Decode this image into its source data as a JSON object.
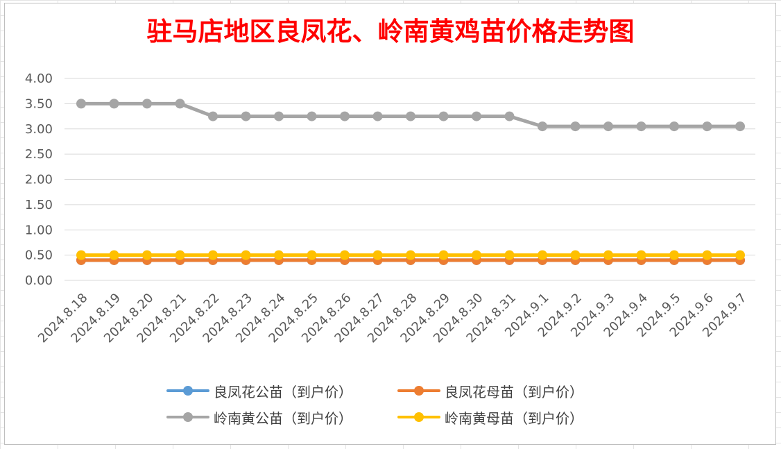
{
  "chart_data": {
    "type": "line",
    "title": "驻马店地区良凤花、岭南黄鸡苗价格走势图",
    "categories": [
      "2024.8.18",
      "2024.8.19",
      "2024.8.20",
      "2024.8.21",
      "2024.8.22",
      "2024.8.23",
      "2024.8.24",
      "2024.8.25",
      "2024.8.26",
      "2024.8.27",
      "2024.8.28",
      "2024.8.29",
      "2024.8.30",
      "2024.8.31",
      "2024.9.1",
      "2024.9.2",
      "2024.9.3",
      "2024.9.4",
      "2024.9.5",
      "2024.9.6",
      "2024.9.7"
    ],
    "ylim": [
      0,
      4
    ],
    "yticks": [
      "0.00",
      "0.50",
      "1.00",
      "1.50",
      "2.00",
      "2.50",
      "3.00",
      "3.50",
      "4.00"
    ],
    "grid": true,
    "legend_position": "bottom",
    "series": [
      {
        "name": "良凤花公苗（到户价）",
        "color": "#5b9bd5",
        "values": [
          0.4,
          0.4,
          0.4,
          0.4,
          0.4,
          0.4,
          0.4,
          0.4,
          0.4,
          0.4,
          0.4,
          0.4,
          0.4,
          0.4,
          0.4,
          0.4,
          0.4,
          0.4,
          0.4,
          0.4,
          0.4
        ]
      },
      {
        "name": "良凤花母苗（到户价）",
        "color": "#ed7d31",
        "values": [
          0.4,
          0.4,
          0.4,
          0.4,
          0.4,
          0.4,
          0.4,
          0.4,
          0.4,
          0.4,
          0.4,
          0.4,
          0.4,
          0.4,
          0.4,
          0.4,
          0.4,
          0.4,
          0.4,
          0.4,
          0.4
        ]
      },
      {
        "name": "岭南黄公苗（到户价）",
        "color": "#a5a5a5",
        "values": [
          3.5,
          3.5,
          3.5,
          3.5,
          3.25,
          3.25,
          3.25,
          3.25,
          3.25,
          3.25,
          3.25,
          3.25,
          3.25,
          3.25,
          3.05,
          3.05,
          3.05,
          3.05,
          3.05,
          3.05,
          3.05
        ]
      },
      {
        "name": "岭南黄母苗（到户价）",
        "color": "#ffc000",
        "values": [
          0.5,
          0.5,
          0.5,
          0.5,
          0.5,
          0.5,
          0.5,
          0.5,
          0.5,
          0.5,
          0.5,
          0.5,
          0.5,
          0.5,
          0.5,
          0.5,
          0.5,
          0.5,
          0.5,
          0.5,
          0.5
        ]
      }
    ]
  }
}
